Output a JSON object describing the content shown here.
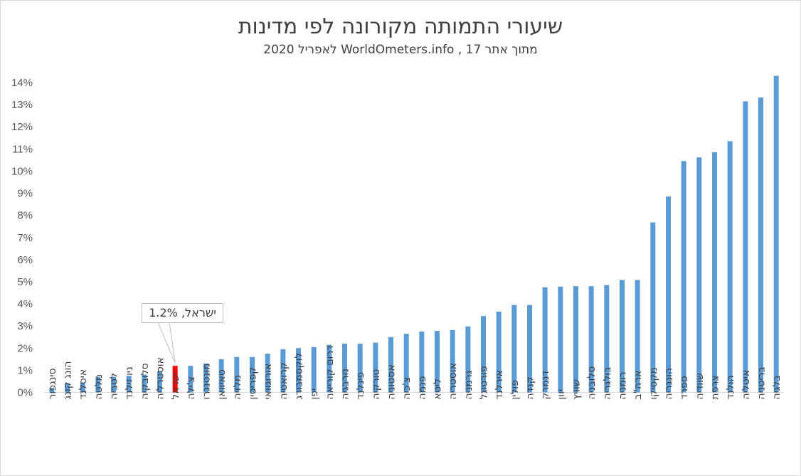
{
  "chart_data": {
    "type": "bar",
    "title": "שיעורי  התמותה מקורונה לפי מדינות",
    "subtitle": "מתוך אתר  WorldOmeters.info , 17 לאפריל 2020",
    "ylim": [
      0,
      14
    ],
    "yticks": [
      "0%",
      "1%",
      "2%",
      "3%",
      "4%",
      "5%",
      "6%",
      "7%",
      "8%",
      "9%",
      "10%",
      "11%",
      "12%",
      "13%",
      "14%"
    ],
    "grid": false,
    "categories": [
      "סינגפור",
      "הונג קונג",
      "איסלנד",
      "מלטה",
      "לטביה",
      "ניו זילנד",
      "סלובקיה",
      "אוסטרליה",
      "ישראל",
      "צ'ילה",
      "מונטנגרו",
      "טאיוואן",
      "מלזיה",
      "קפריסין",
      "אורוגוואי",
      "קרואטיה",
      "לוקסמבורג",
      "יפן",
      "דרום קוריאה",
      "נורבגיה",
      "פינלנד",
      "טורקיה",
      "אסטוניה",
      "צ'כיה",
      "פנמה",
      "ליטא",
      "אוסטריה",
      "גרמניה",
      "פורטוגל",
      "אירלנד",
      "פולין",
      "קנדה",
      "דנמרק",
      "יוון",
      "שוויץ",
      "סלובניה",
      "בולגריה",
      "רומניה",
      "ארה\"ב",
      "מקסיקו",
      "הונגריה",
      "ספרד",
      "שוודיה",
      "צרפת",
      "הולנד",
      "איטליה",
      "בריטניה",
      "בלגיה"
    ],
    "values": [
      0.2,
      0.4,
      0.45,
      0.7,
      0.7,
      0.75,
      0.8,
      0.95,
      1.2,
      1.2,
      1.3,
      1.5,
      1.6,
      1.6,
      1.75,
      1.95,
      2.0,
      2.05,
      2.15,
      2.2,
      2.2,
      2.25,
      2.5,
      2.65,
      2.75,
      2.78,
      2.82,
      2.98,
      3.45,
      3.65,
      3.95,
      3.95,
      4.75,
      4.78,
      4.8,
      4.8,
      4.85,
      5.08,
      5.08,
      7.68,
      8.85,
      10.45,
      10.62,
      10.85,
      11.35,
      13.15,
      13.32,
      14.3
    ],
    "highlight_index": 8,
    "colors": {
      "bar": "#5b9bd5",
      "highlight": "#ff0000"
    },
    "annotation": {
      "text": "ישראל, 1.2%",
      "category": "ישראל"
    }
  }
}
